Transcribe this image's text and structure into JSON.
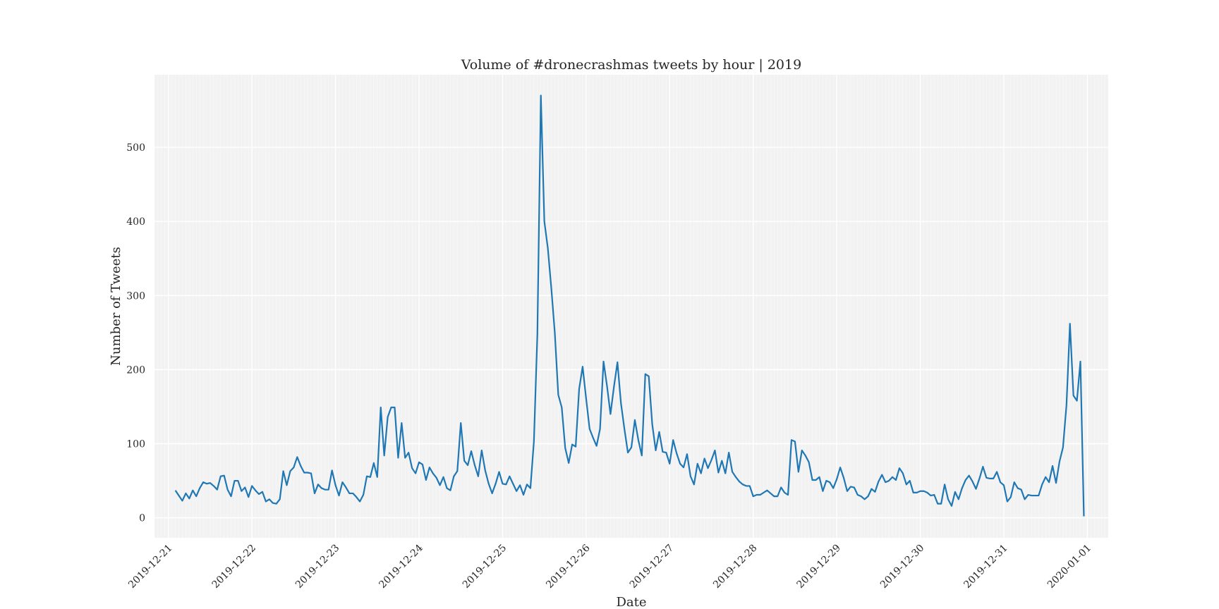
{
  "chart_data": {
    "type": "line",
    "title": "Volume of #dronecrashmas tweets by hour | 2019",
    "xlabel": "Date",
    "ylabel": "Number of Tweets",
    "x_ticks": [
      "2019-12-21",
      "2019-12-22",
      "2019-12-23",
      "2019-12-24",
      "2019-12-25",
      "2019-12-26",
      "2019-12-27",
      "2019-12-28",
      "2019-12-29",
      "2019-12-30",
      "2019-12-31",
      "2020-01-01"
    ],
    "y_ticks": [
      0,
      100,
      200,
      300,
      400,
      500
    ],
    "xlim": [
      "2020-12-20T20:00",
      "2020-01-01T06:00"
    ],
    "ylim": [
      -27,
      598
    ],
    "grid": true,
    "minor_x_grid": "hourly",
    "line_color": "#1f77b4",
    "background": "#f2f2f2",
    "series": [
      {
        "x_start": "2019-12-21T02:00",
        "step": "1h",
        "values": [
          37,
          30,
          23,
          33,
          26,
          37,
          29,
          40,
          48,
          46,
          47,
          43,
          38,
          56,
          57,
          38,
          29,
          50,
          50,
          36,
          41,
          28,
          43,
          37,
          32,
          35,
          22,
          25,
          20,
          19,
          25,
          63,
          44,
          63,
          68,
          82,
          70,
          61,
          61,
          60,
          33,
          45,
          40,
          38,
          38,
          64,
          44,
          30,
          48,
          41,
          33,
          33,
          28,
          22,
          31,
          56,
          55,
          74,
          55,
          149,
          84,
          136,
          149,
          149,
          81,
          128,
          81,
          88,
          67,
          60,
          75,
          72,
          51,
          68,
          60,
          54,
          44,
          55,
          40,
          37,
          56,
          63,
          128,
          77,
          71,
          90,
          71,
          56,
          91,
          64,
          46,
          33,
          46,
          62,
          46,
          45,
          56,
          46,
          36,
          44,
          31,
          45,
          40,
          103,
          248,
          570,
          400,
          364,
          310,
          250,
          166,
          149,
          94,
          74,
          99,
          96,
          174,
          204,
          161,
          120,
          108,
          97,
          120,
          211,
          178,
          140,
          177,
          210,
          155,
          120,
          88,
          95,
          132,
          105,
          84,
          194,
          191,
          126,
          91,
          116,
          89,
          88,
          73,
          105,
          87,
          73,
          68,
          86,
          56,
          45,
          73,
          60,
          80,
          67,
          78,
          91,
          61,
          77,
          60,
          88,
          62,
          55,
          49,
          45,
          43,
          43,
          29,
          31,
          31,
          34,
          37,
          33,
          29,
          29,
          41,
          34,
          31,
          105,
          103,
          62,
          91,
          84,
          75,
          51,
          51,
          55,
          36,
          50,
          48,
          40,
          52,
          68,
          54,
          36,
          42,
          41,
          31,
          29,
          25,
          29,
          39,
          35,
          49,
          58,
          48,
          50,
          55,
          51,
          67,
          60,
          45,
          50,
          34,
          34,
          36,
          36,
          34,
          30,
          31,
          19,
          19,
          45,
          25,
          16,
          35,
          25,
          40,
          51,
          57,
          49,
          39,
          53,
          69,
          54,
          53,
          53,
          62,
          48,
          44,
          22,
          28,
          48,
          40,
          38,
          25,
          31,
          30,
          30,
          30,
          45,
          55,
          48,
          70,
          47,
          76,
          95,
          152,
          262,
          165,
          158,
          211,
          2
        ]
      }
    ]
  }
}
